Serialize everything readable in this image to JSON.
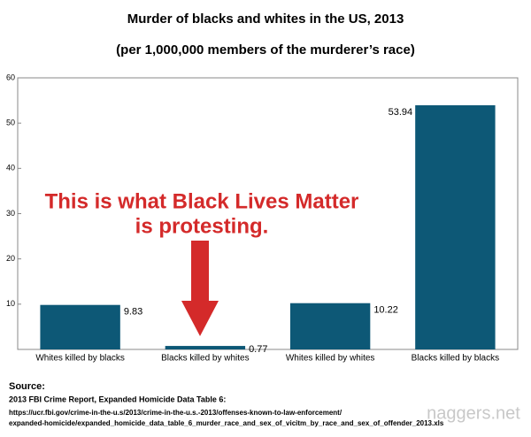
{
  "chart_data": {
    "type": "bar",
    "title": "Murder of blacks and whites in the US, 2013",
    "subtitle": "(per 1,000,000 members of the murderer’s race)",
    "categories": [
      "Whites killed by blacks",
      "Blacks killed by whites",
      "Whites killed by whites",
      "Blacks killed by blacks"
    ],
    "values": [
      9.83,
      0.77,
      10.22,
      53.94
    ],
    "color": "#0d5876",
    "ylim": [
      0,
      60
    ],
    "yticks": [
      10,
      20,
      30,
      40,
      50,
      60
    ],
    "grid": false,
    "annotation": [
      "This is what Black Lives Matter",
      "is protesting."
    ],
    "annotation_color": "#d42a2a"
  },
  "source": {
    "heading": "Source:",
    "report": "2013 FBI Crime Report, Expanded Homicide Data Table 6:",
    "url_lines": [
      "https://ucr.fbi.gov/crime-in-the-u.s/2013/crime-in-the-u.s.-2013/offenses-known-to-law-enforcement/",
      "expanded-homicide/expanded_homicide_data_table_6_murder_race_and_sex_of_vicitm_by_race_and_sex_of_offender_2013.xls"
    ],
    "watermark": "naggers.net"
  }
}
